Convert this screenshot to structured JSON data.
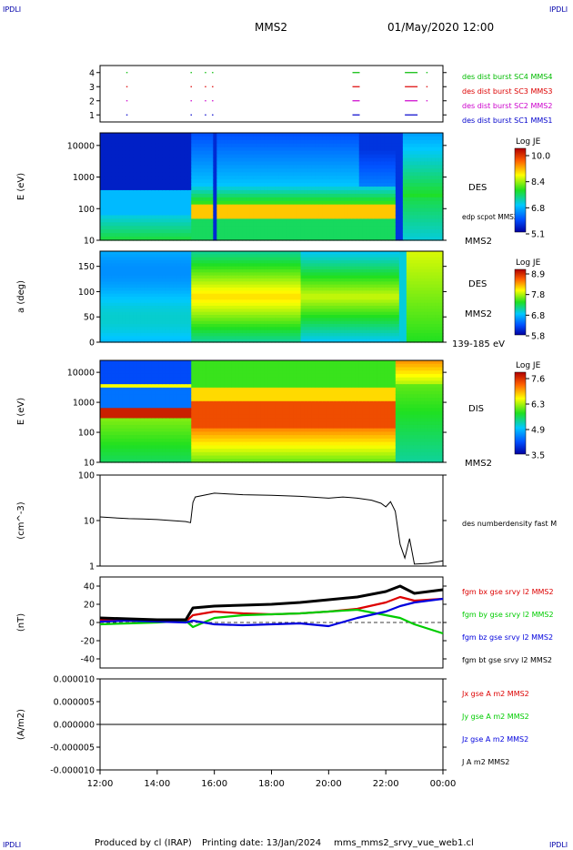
{
  "header": {
    "corner_tl": "IPDLI",
    "corner_tr": "IPDLI",
    "corner_bl": "IPDLI",
    "corner_br": "IPDLI",
    "title": "MMS2",
    "datetime": "01/May/2020 12:00"
  },
  "footer": {
    "credit": "Produced by cl (IRAP)",
    "printing": "Printing date: 13/Jan/2024",
    "script": "mms_mms2_srvy_vue_web1.cl"
  },
  "colors": {
    "mms1": "#0000cc",
    "mms2": "#cc00cc",
    "mms3": "#dd0000",
    "mms4": "#00bb00",
    "bx": "#dd0000",
    "by": "#00cc00",
    "bz": "#0000dd",
    "bt": "#000000"
  },
  "chart_data": [
    {
      "type": "scatter",
      "panel": "burst",
      "yticks": [
        "4",
        "3",
        "2",
        "1"
      ],
      "ylim": [
        0.5,
        4.5
      ],
      "series": [
        {
          "name": "des dist burst SC1 MMS1",
          "color": "#0000cc",
          "x": [
            "12:55",
            "15:10",
            "15:40",
            "15:55",
            "20:50",
            "22:40"
          ],
          "y": 1
        },
        {
          "name": "des dist burst SC2 MMS2",
          "color": "#cc00cc",
          "x": [
            "12:55",
            "15:10",
            "15:40",
            "15:55",
            "20:50",
            "22:40",
            "23:25"
          ],
          "y": 2
        },
        {
          "name": "des dist burst SC3 MMS3",
          "color": "#dd0000",
          "x": [
            "12:55",
            "15:10",
            "15:40",
            "15:55",
            "20:50",
            "22:40",
            "23:25"
          ],
          "y": 3
        },
        {
          "name": "des dist burst SC4 MMS4",
          "color": "#00bb00",
          "x": [
            "12:55",
            "15:10",
            "15:40",
            "15:55",
            "20:50",
            "22:40",
            "23:25"
          ],
          "y": 4
        }
      ]
    },
    {
      "type": "heatmap",
      "panel": "des-energy",
      "ylabel": "E (eV)",
      "yscale": "log",
      "ylim": [
        10,
        25000
      ],
      "yticks": [
        "10000",
        "1000",
        "100",
        "10"
      ],
      "side_labels": [
        "DES",
        "edp scpot MMS2",
        "MMS2"
      ],
      "colorbar": {
        "title": "Log JE",
        "ticks": [
          "10.0",
          "8.4",
          "6.8",
          "5.1"
        ],
        "min": 5.1,
        "max": 10.0
      }
    },
    {
      "type": "heatmap",
      "panel": "des-pitch",
      "ylabel": "a (deg)",
      "ylim": [
        0,
        180
      ],
      "yticks": [
        "150",
        "100",
        "50",
        "0"
      ],
      "side_labels": [
        "DES",
        "MMS2",
        "139-185 eV"
      ],
      "colorbar": {
        "title": "Log JE",
        "ticks": [
          "8.9",
          "7.8",
          "6.8",
          "5.8"
        ],
        "min": 5.8,
        "max": 8.9
      }
    },
    {
      "type": "heatmap",
      "panel": "dis-energy",
      "ylabel": "E (eV)",
      "yscale": "log",
      "ylim": [
        10,
        25000
      ],
      "yticks": [
        "10000",
        "1000",
        "100",
        "10"
      ],
      "side_labels": [
        "DIS",
        "MMS2"
      ],
      "colorbar": {
        "title": "Log JE",
        "ticks": [
          "7.6",
          "6.3",
          "4.9",
          "3.5"
        ],
        "min": 3.5,
        "max": 7.6
      }
    },
    {
      "type": "line",
      "panel": "density",
      "ylabel": "(cm^-3)",
      "yscale": "log",
      "ylim": [
        1,
        100
      ],
      "yticks": [
        "100",
        "10",
        "1"
      ],
      "series": [
        {
          "name": "des numberdensity fast M",
          "color": "#000000",
          "x": [
            "12:00",
            "12:30",
            "13:00",
            "13:30",
            "14:00",
            "14:30",
            "15:00",
            "15:10",
            "15:15",
            "15:20",
            "16:00",
            "17:00",
            "18:00",
            "19:00",
            "20:00",
            "20:30",
            "21:00",
            "21:30",
            "21:50",
            "22:00",
            "22:10",
            "22:20",
            "22:30",
            "22:40",
            "22:50",
            "23:00",
            "23:30",
            "00:00"
          ],
          "values": [
            12,
            11.5,
            11,
            10.8,
            10.5,
            10,
            9.5,
            9,
            25,
            33,
            40,
            37,
            36,
            34,
            31,
            33,
            31,
            28,
            24,
            20,
            26,
            16,
            3,
            1.5,
            4,
            1.1,
            1.15,
            1.3
          ]
        }
      ]
    },
    {
      "type": "line",
      "panel": "magnetic-field",
      "ylabel": "(nT)",
      "ylim": [
        -50,
        50
      ],
      "yticks": [
        "40",
        "20",
        "0",
        "-20",
        "-40"
      ],
      "series": [
        {
          "name": "fgm bx gse srvy l2 MMS2",
          "color": "#dd0000",
          "x": [
            "12:00",
            "13:00",
            "14:00",
            "15:00",
            "15:15",
            "16:00",
            "17:00",
            "18:00",
            "19:00",
            "20:00",
            "21:00",
            "22:00",
            "22:30",
            "23:00",
            "00:00"
          ],
          "values": [
            3,
            2,
            1,
            1,
            8,
            12,
            10,
            9,
            10,
            12,
            15,
            22,
            28,
            24,
            26
          ]
        },
        {
          "name": "fgm by gse srvy l2 MMS2",
          "color": "#00cc00",
          "x": [
            "12:00",
            "13:00",
            "14:00",
            "15:00",
            "15:15",
            "16:00",
            "17:00",
            "18:00",
            "19:00",
            "20:00",
            "21:00",
            "22:00",
            "22:30",
            "23:00",
            "00:00"
          ],
          "values": [
            -2,
            -1,
            0,
            2,
            -5,
            5,
            8,
            9,
            10,
            12,
            14,
            8,
            5,
            -2,
            -12
          ]
        },
        {
          "name": "fgm bz gse srvy l2 MMS2",
          "color": "#0000dd",
          "x": [
            "12:00",
            "13:00",
            "14:00",
            "15:00",
            "15:15",
            "16:00",
            "17:00",
            "18:00",
            "19:00",
            "20:00",
            "21:00",
            "22:00",
            "22:30",
            "23:00",
            "00:00"
          ],
          "values": [
            1,
            2,
            1,
            0,
            2,
            -2,
            -3,
            -2,
            -1,
            -4,
            5,
            12,
            18,
            22,
            26
          ]
        },
        {
          "name": "fgm bt gse srvy l2 MMS2",
          "color": "#000000",
          "x": [
            "12:00",
            "13:00",
            "14:00",
            "15:00",
            "15:15",
            "16:00",
            "17:00",
            "18:00",
            "19:00",
            "20:00",
            "21:00",
            "22:00",
            "22:30",
            "23:00",
            "00:00"
          ],
          "values": [
            5,
            4,
            3,
            3,
            16,
            18,
            19,
            20,
            22,
            25,
            28,
            34,
            40,
            32,
            36
          ]
        }
      ]
    },
    {
      "type": "line",
      "panel": "current",
      "ylabel": "(A/m2)",
      "ylim": [
        -1e-05,
        1e-05
      ],
      "yticks": [
        "0.000010",
        "0.000005",
        "0.000000",
        "-0.000005",
        "-0.000010"
      ],
      "series": [
        {
          "name": "Jx gse A m2 MMS2",
          "color": "#dd0000",
          "values": [
            0
          ]
        },
        {
          "name": "Jy gse A m2 MMS2",
          "color": "#00cc00",
          "values": [
            0
          ]
        },
        {
          "name": "Jz gse A m2 MMS2",
          "color": "#0000dd",
          "values": [
            0
          ]
        },
        {
          "name": "J A m2 MMS2",
          "color": "#000000",
          "values": [
            0
          ]
        }
      ]
    }
  ],
  "xaxis": {
    "ticks": [
      "12:00",
      "14:00",
      "16:00",
      "18:00",
      "20:00",
      "22:00",
      "00:00"
    ],
    "range_hours": [
      12,
      24
    ]
  }
}
